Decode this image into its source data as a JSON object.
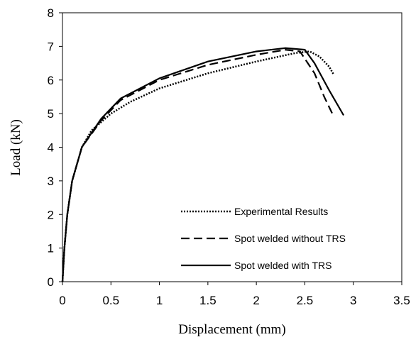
{
  "chart_data": {
    "type": "line",
    "xlabel": "Displacement (mm)",
    "ylabel": "Load (kN)",
    "xlim": [
      0,
      3.5
    ],
    "xticks": [
      0,
      0.5,
      1,
      1.5,
      2,
      2.5,
      3,
      3.5
    ],
    "ylim": [
      0,
      8
    ],
    "yticks": [
      0,
      1,
      2,
      3,
      4,
      5,
      6,
      7,
      8
    ],
    "grid": false,
    "legend": "lower right",
    "series": [
      {
        "name": "Experimental Results",
        "color": "#000000",
        "style": "dotted",
        "x": [
          0,
          0.02,
          0.05,
          0.1,
          0.2,
          0.3,
          0.5,
          0.7,
          1,
          1.5,
          2,
          2.4,
          2.55,
          2.65,
          2.75,
          2.8
        ],
        "values": [
          0,
          1,
          2,
          3,
          4,
          4.5,
          5.0,
          5.35,
          5.75,
          6.2,
          6.55,
          6.8,
          6.85,
          6.7,
          6.4,
          6.15
        ]
      },
      {
        "name": "Spot welded without TRS",
        "color": "#000000",
        "style": "dashed",
        "x": [
          0,
          0.02,
          0.05,
          0.1,
          0.2,
          0.4,
          0.6,
          1,
          1.5,
          2,
          2.3,
          2.45,
          2.6,
          2.7,
          2.8
        ],
        "values": [
          0,
          1,
          2,
          3,
          4,
          4.8,
          5.4,
          6.0,
          6.45,
          6.75,
          6.9,
          6.85,
          6.2,
          5.5,
          4.9
        ]
      },
      {
        "name": "Spot welded with TRS",
        "color": "#000000",
        "style": "solid",
        "x": [
          0,
          0.02,
          0.05,
          0.1,
          0.2,
          0.4,
          0.6,
          1,
          1.5,
          2,
          2.3,
          2.5,
          2.6,
          2.75,
          2.9
        ],
        "values": [
          0,
          1,
          2,
          3,
          4,
          4.85,
          5.45,
          6.05,
          6.55,
          6.85,
          6.95,
          6.9,
          6.5,
          5.7,
          4.95
        ]
      }
    ]
  }
}
